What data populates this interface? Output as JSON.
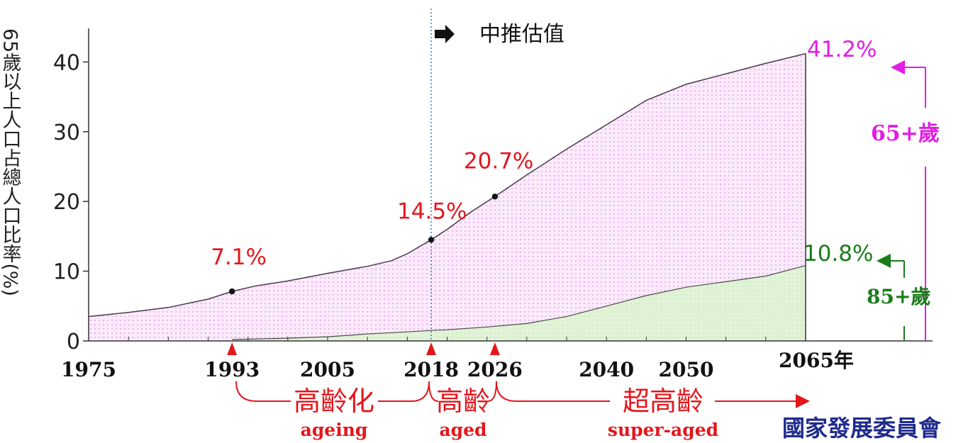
{
  "chart_data": {
    "type": "area",
    "ylabel": "65歲以上人口占總人口比率(%)",
    "ylim": [
      0,
      45
    ],
    "yticks": [
      "0",
      "10",
      "20",
      "30",
      "40"
    ],
    "xlim": [
      1975,
      2065
    ],
    "xticks": [
      "1975",
      "1993",
      "2005",
      "2018",
      "2026",
      "2040",
      "2050"
    ],
    "xtick_last": "2065年",
    "projection_label": "中推估值",
    "projection_year": 2018,
    "series": [
      {
        "name": "65+歲",
        "color": "#f3d3f3",
        "points": [
          [
            1975,
            3.5
          ],
          [
            1980,
            4.1
          ],
          [
            1985,
            4.8
          ],
          [
            1990,
            6.0
          ],
          [
            1993,
            7.1
          ],
          [
            1996,
            7.9
          ],
          [
            2000,
            8.6
          ],
          [
            2005,
            9.7
          ],
          [
            2010,
            10.7
          ],
          [
            2013,
            11.5
          ],
          [
            2015,
            12.5
          ],
          [
            2018,
            14.5
          ],
          [
            2020,
            16.0
          ],
          [
            2023,
            18.5
          ],
          [
            2026,
            20.7
          ],
          [
            2030,
            23.8
          ],
          [
            2035,
            27.5
          ],
          [
            2040,
            31.0
          ],
          [
            2045,
            34.5
          ],
          [
            2050,
            36.8
          ],
          [
            2055,
            38.3
          ],
          [
            2060,
            39.8
          ],
          [
            2065,
            41.2
          ]
        ]
      },
      {
        "name": "85+歲",
        "color": "#dff2d4",
        "points": [
          [
            1993,
            0.2
          ],
          [
            1995,
            0.25
          ],
          [
            2000,
            0.4
          ],
          [
            2005,
            0.6
          ],
          [
            2010,
            1.0
          ],
          [
            2015,
            1.3
          ],
          [
            2018,
            1.5
          ],
          [
            2020,
            1.6
          ],
          [
            2025,
            2.0
          ],
          [
            2030,
            2.5
          ],
          [
            2035,
            3.5
          ],
          [
            2040,
            5.0
          ],
          [
            2045,
            6.5
          ],
          [
            2050,
            7.7
          ],
          [
            2055,
            8.5
          ],
          [
            2060,
            9.3
          ],
          [
            2065,
            10.8
          ]
        ]
      }
    ],
    "annotations": [
      {
        "label": "7.1%",
        "x": 1993,
        "y": 7.1
      },
      {
        "label": "14.5%",
        "x": 2018,
        "y": 14.5
      },
      {
        "label": "20.7%",
        "x": 2026,
        "y": 20.7
      }
    ],
    "end_labels": {
      "s65": "41.2%",
      "s85": "10.8%"
    },
    "series_labels": {
      "s65": "65+歲",
      "s85": "85+歲"
    },
    "stage_markers": [
      1993,
      2018,
      2026
    ],
    "stages": [
      {
        "zh": "高齡化",
        "en": "ageing"
      },
      {
        "zh": "高齡",
        "en": "aged"
      },
      {
        "zh": "超高齡",
        "en": "super-aged"
      }
    ]
  },
  "source": "國家發展委員會",
  "colors": {
    "red": "#e3161c",
    "magenta": "#e21de3",
    "green": "#1a7d1a",
    "navy": "#1f2a8c"
  }
}
